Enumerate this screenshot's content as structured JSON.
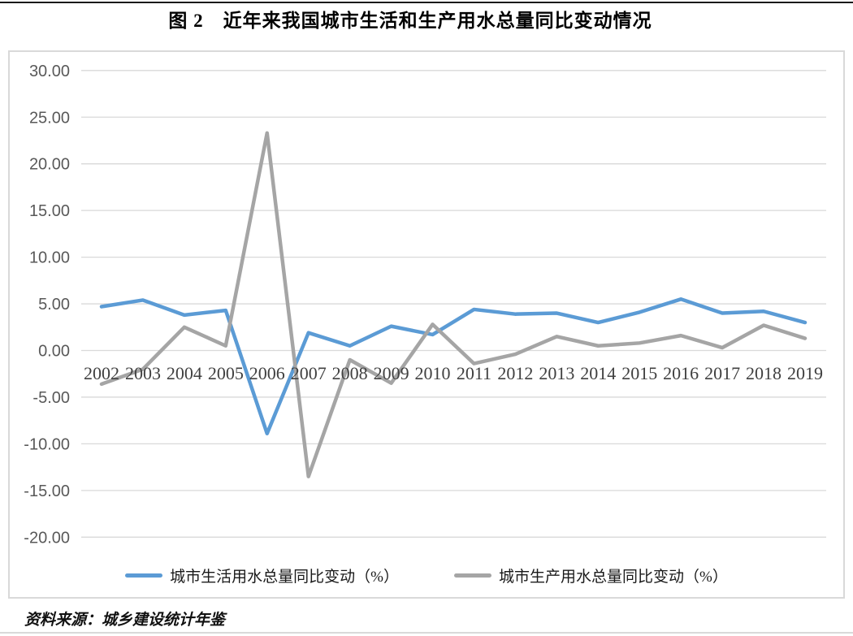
{
  "page": {
    "title": "图 2　近年来我国城市生活和生产用水总量同比变动情况",
    "source_note": "资料来源：城乡建设统计年鉴"
  },
  "chart_data": {
    "type": "line",
    "title": "图 2　近年来我国城市生活和生产用水总量同比变动情况",
    "xlabel": "",
    "ylabel": "",
    "categories": [
      "2002",
      "2003",
      "2004",
      "2005",
      "2006",
      "2007",
      "2008",
      "2009",
      "2010",
      "2011",
      "2012",
      "2013",
      "2014",
      "2015",
      "2016",
      "2017",
      "2018",
      "2019"
    ],
    "series": [
      {
        "name": "城市生活用水总量同比变动（%）",
        "color": "#5B9BD5",
        "values": [
          4.7,
          5.4,
          3.8,
          4.3,
          -8.9,
          1.9,
          0.5,
          2.6,
          1.7,
          4.4,
          3.9,
          4.0,
          3.0,
          4.1,
          5.5,
          4.0,
          4.2,
          3.0
        ]
      },
      {
        "name": "城市生产用水总量同比变动（%）",
        "color": "#A5A5A5",
        "values": [
          -3.6,
          -2.0,
          2.5,
          0.5,
          23.3,
          -13.5,
          -1.0,
          -3.5,
          2.8,
          -1.4,
          -0.4,
          1.5,
          0.5,
          0.8,
          1.6,
          0.3,
          2.7,
          1.3
        ]
      }
    ],
    "ylim": [
      -20,
      30
    ],
    "yticks": [
      {
        "value": 30,
        "label": "30.00"
      },
      {
        "value": 25,
        "label": "25.00"
      },
      {
        "value": 20,
        "label": "20.00"
      },
      {
        "value": 15,
        "label": "15.00"
      },
      {
        "value": 10,
        "label": "10.00"
      },
      {
        "value": 5,
        "label": "5.00"
      },
      {
        "value": 0,
        "label": "0.00"
      },
      {
        "value": -5,
        "label": "-5.00"
      },
      {
        "value": -10,
        "label": "-10.00"
      },
      {
        "value": -15,
        "label": "-15.00"
      },
      {
        "value": -20,
        "label": "-20.00"
      }
    ],
    "grid": true,
    "legend_position": "bottom",
    "gridline_color": "#D9D9D9",
    "axis_label_color": "#595959",
    "category_label_color": "#404040"
  }
}
